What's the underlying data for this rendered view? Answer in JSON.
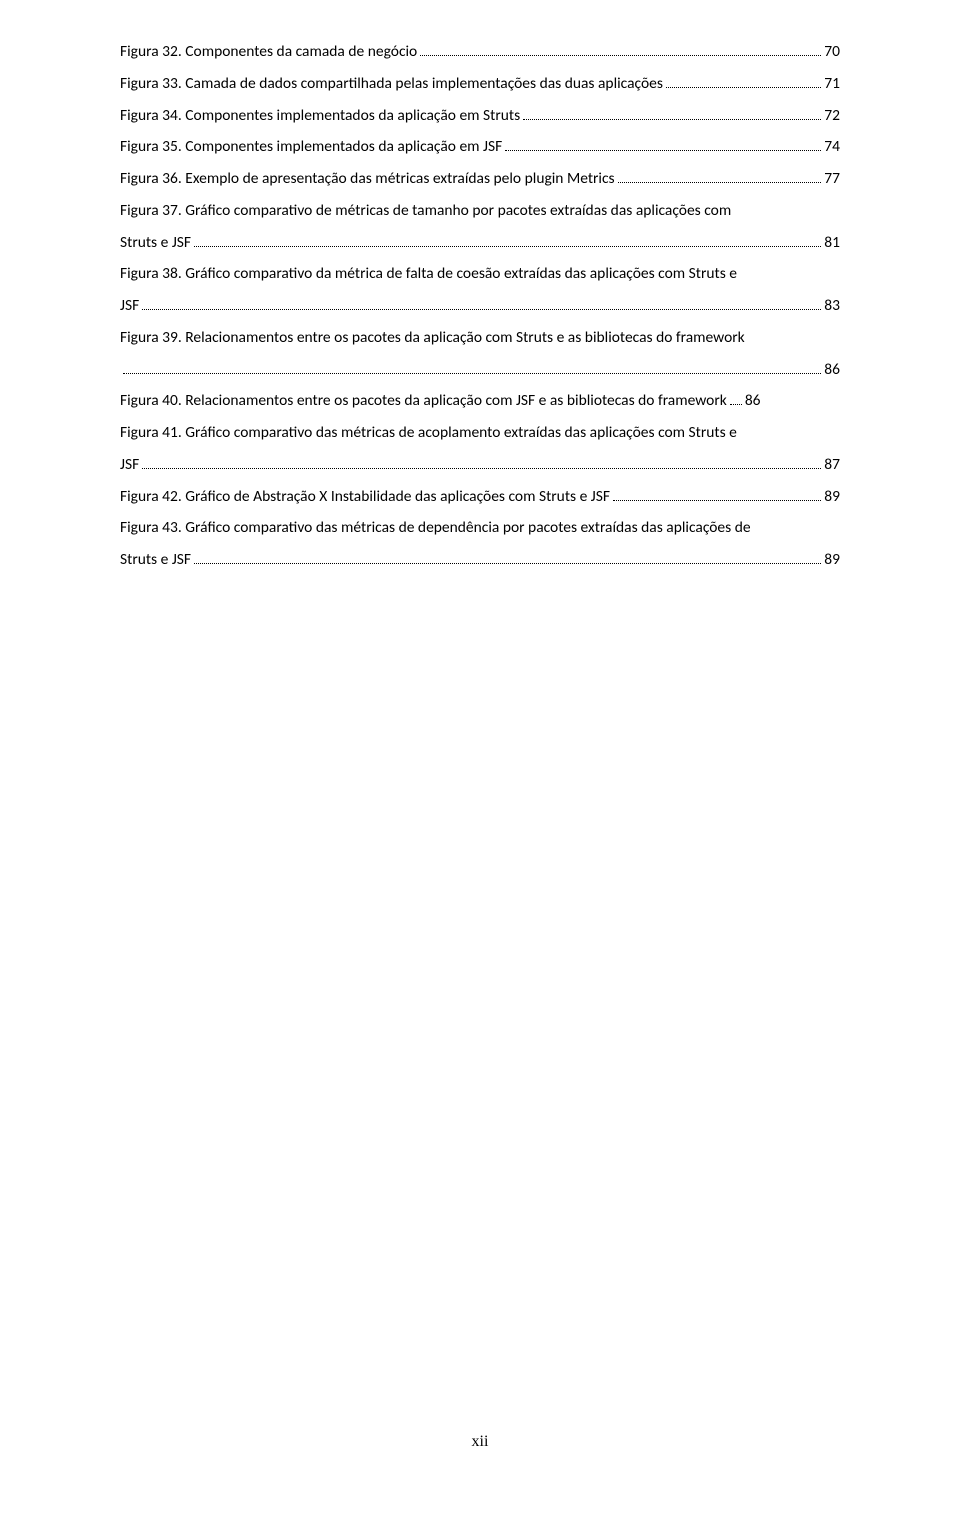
{
  "entries": [
    {
      "lines": [
        {
          "text": "Figura 32. Componentes da camada de negócio",
          "page": "70"
        }
      ]
    },
    {
      "lines": [
        {
          "text": "Figura 33. Camada de dados compartilhada pelas implementações das duas aplicações",
          "page": "71"
        }
      ]
    },
    {
      "lines": [
        {
          "text": "Figura 34. Componentes implementados da aplicação em Struts",
          "page": "72"
        }
      ]
    },
    {
      "lines": [
        {
          "text": "Figura 35. Componentes implementados da aplicação em JSF",
          "page": "74"
        }
      ]
    },
    {
      "lines": [
        {
          "text": "Figura 36. Exemplo de apresentação das métricas extraídas pelo plugin Metrics",
          "page": "77"
        }
      ]
    },
    {
      "lines": [
        {
          "text": "Figura 37. Gráfico comparativo de métricas de tamanho por pacotes extraídas das aplicações com",
          "page": null
        },
        {
          "text": "Struts e JSF",
          "page": "81"
        }
      ]
    },
    {
      "lines": [
        {
          "text": "Figura 38. Gráfico comparativo da métrica de falta de coesão extraídas das aplicações com Struts e",
          "page": null
        },
        {
          "text": "JSF",
          "page": "83"
        }
      ]
    },
    {
      "lines": [
        {
          "text": "Figura 39. Relacionamentos entre os pacotes da aplicação com Struts e as bibliotecas do framework",
          "page": null
        },
        {
          "text": "",
          "page": "86"
        }
      ]
    },
    {
      "lines": [
        {
          "text": "Figura 40. Relacionamentos entre os pacotes da aplicação com JSF e as bibliotecas do framework",
          "page": "86",
          "dotStyle": "short"
        }
      ]
    },
    {
      "lines": [
        {
          "text": "Figura 41. Gráfico comparativo das métricas de acoplamento extraídas das aplicações com Struts e",
          "page": null
        },
        {
          "text": "JSF",
          "page": "87"
        }
      ]
    },
    {
      "lines": [
        {
          "text": "Figura 42. Gráfico de Abstração X  Instabilidade das aplicações com Struts e JSF",
          "page": "89"
        }
      ]
    },
    {
      "lines": [
        {
          "text": "Figura 43. Gráfico comparativo das métricas de dependência por pacotes extraídas das aplicações de",
          "page": null
        },
        {
          "text": "Struts e JSF",
          "page": "89"
        }
      ]
    }
  ],
  "pageNumber": "xii",
  "styling": {
    "bodyWidth": 960,
    "bodyHeight": 1515,
    "background": "#ffffff",
    "textColor": "#000000",
    "baseFontSize": 15.5,
    "lineHeight": 2.05,
    "pageNumberFontFamily": "Times New Roman",
    "pageNumberFontSize": 16
  }
}
